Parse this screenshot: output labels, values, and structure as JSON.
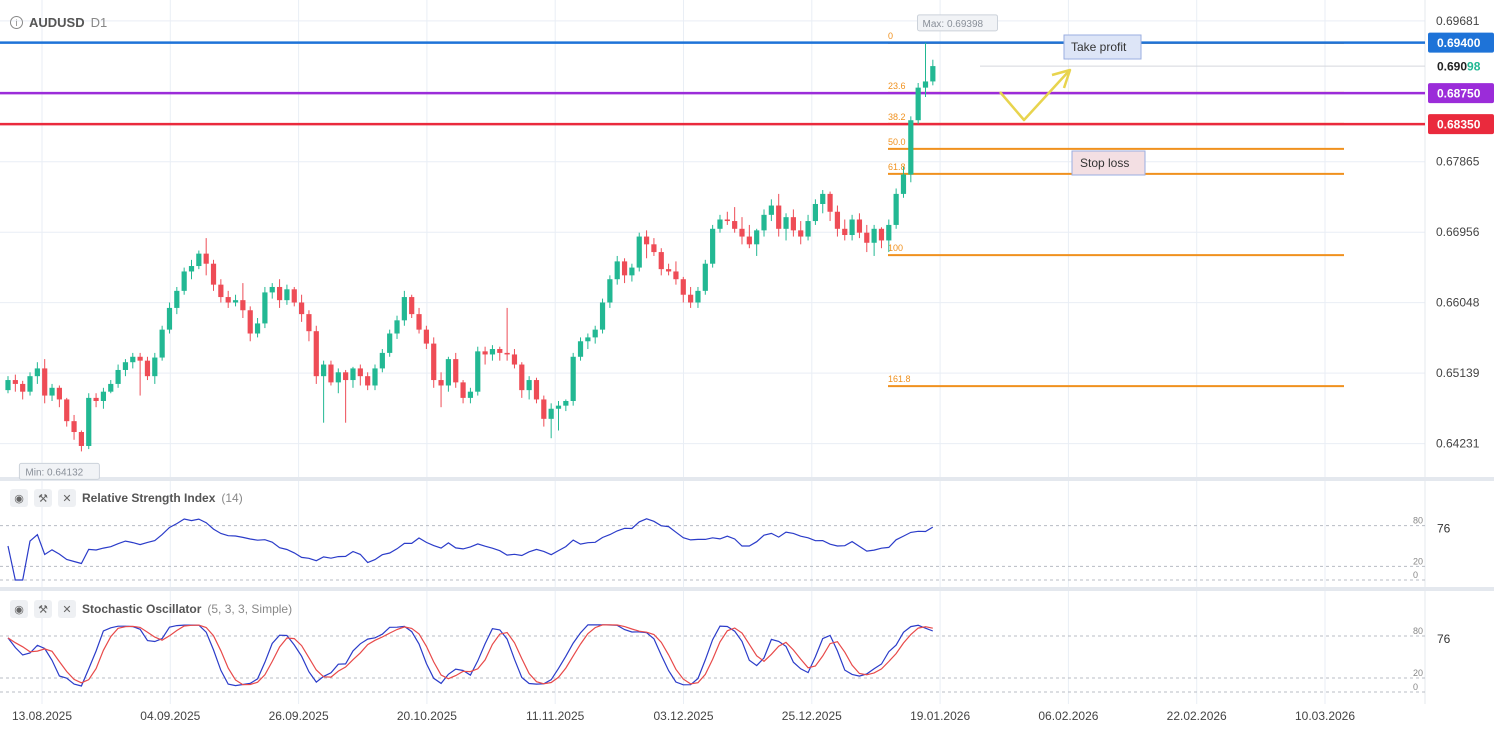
{
  "header": {
    "info_icon": "info-icon",
    "symbol": "AUDUSD",
    "timeframe": "D1"
  },
  "colors": {
    "up": "#22b893",
    "down": "#ee4c56",
    "fib": "#f0911e",
    "blue_line": "#1e73d8",
    "purple_line": "#9b2cd9",
    "red_line": "#ea2a3d",
    "indicator": "#2b3cc9",
    "signal": "#e84a4a",
    "grid": "#e9eef5",
    "arrow": "#e8d44e"
  },
  "price_axis": {
    "ticks": [
      "0.69681",
      "0.67865",
      "0.66956",
      "0.66048",
      "0.65139",
      "0.64231"
    ]
  },
  "levels": [
    {
      "label": "0.69400",
      "value": 0.694,
      "color": "#1e73d8"
    },
    {
      "label": "0.68750",
      "value": 0.6875,
      "color": "#9b2cd9"
    },
    {
      "label": "0.68350",
      "value": 0.6835,
      "color": "#ea2a3d"
    }
  ],
  "last_price": {
    "label_main": "0.690",
    "label_tail": "98",
    "value": 0.69098
  },
  "fibonacci": [
    {
      "label": "0",
      "value": 0.69398
    },
    {
      "label": "23.6",
      "value": 0.68752
    },
    {
      "label": "38.2",
      "value": 0.68353
    },
    {
      "label": "50.0",
      "value": 0.68031
    },
    {
      "label": "61.8",
      "value": 0.67708
    },
    {
      "label": "100",
      "value": 0.6666
    },
    {
      "label": "161.8",
      "value": 0.64971
    }
  ],
  "annotations": {
    "take_profit": "Take profit",
    "stop_loss": "Stop loss",
    "max_label": "Max: 0.69398",
    "min_label": "Min: 0.64132"
  },
  "dates": [
    "13.08.2025",
    "04.09.2025",
    "26.09.2025",
    "20.10.2025",
    "11.11.2025",
    "03.12.2025",
    "25.12.2025",
    "19.01.2026",
    "06.02.2026",
    "22.02.2026",
    "10.03.2026"
  ],
  "indicators": {
    "rsi": {
      "name": "Relative Strength Index",
      "params": "(14)",
      "current": "76",
      "levels": [
        "80",
        "20",
        "0"
      ],
      "icons": [
        "eye-icon",
        "wrench-icon",
        "close-icon"
      ]
    },
    "stoch": {
      "name": "Stochastic Oscillator",
      "params": "(5, 3, 3, Simple)",
      "current": "76",
      "levels": [
        "80",
        "20",
        "0"
      ],
      "icons": [
        "eye-icon",
        "wrench-icon",
        "close-icon"
      ]
    }
  },
  "chart_data": {
    "type": "candlestick",
    "ylim": [
      0.638,
      0.6995
    ],
    "candles": [
      [
        0.6492,
        0.651,
        0.6488,
        0.6505
      ],
      [
        0.6505,
        0.6512,
        0.649,
        0.65
      ],
      [
        0.65,
        0.6504,
        0.648,
        0.649
      ],
      [
        0.649,
        0.6515,
        0.6485,
        0.651
      ],
      [
        0.651,
        0.6528,
        0.65,
        0.652
      ],
      [
        0.652,
        0.6532,
        0.6475,
        0.6485
      ],
      [
        0.6485,
        0.65,
        0.6478,
        0.6495
      ],
      [
        0.6495,
        0.6498,
        0.647,
        0.648
      ],
      [
        0.648,
        0.6482,
        0.6445,
        0.6452
      ],
      [
        0.6452,
        0.646,
        0.6428,
        0.6438
      ],
      [
        0.6438,
        0.644,
        0.6413,
        0.642
      ],
      [
        0.642,
        0.6488,
        0.6416,
        0.6482
      ],
      [
        0.6482,
        0.6488,
        0.647,
        0.6478
      ],
      [
        0.6478,
        0.6495,
        0.6468,
        0.649
      ],
      [
        0.649,
        0.6505,
        0.6488,
        0.65
      ],
      [
        0.65,
        0.6525,
        0.6495,
        0.6518
      ],
      [
        0.6518,
        0.6532,
        0.651,
        0.6528
      ],
      [
        0.6528,
        0.654,
        0.652,
        0.6535
      ],
      [
        0.6535,
        0.654,
        0.6485,
        0.653
      ],
      [
        0.653,
        0.6535,
        0.6505,
        0.651
      ],
      [
        0.651,
        0.654,
        0.65,
        0.6534
      ],
      [
        0.6534,
        0.6575,
        0.653,
        0.657
      ],
      [
        0.657,
        0.6605,
        0.6565,
        0.6598
      ],
      [
        0.6598,
        0.6625,
        0.659,
        0.662
      ],
      [
        0.662,
        0.665,
        0.6615,
        0.6645
      ],
      [
        0.6645,
        0.666,
        0.6635,
        0.6652
      ],
      [
        0.6652,
        0.6672,
        0.6648,
        0.6668
      ],
      [
        0.6668,
        0.6688,
        0.664,
        0.6655
      ],
      [
        0.6655,
        0.666,
        0.662,
        0.6628
      ],
      [
        0.6628,
        0.6635,
        0.6605,
        0.6612
      ],
      [
        0.6612,
        0.662,
        0.6598,
        0.6605
      ],
      [
        0.6605,
        0.6615,
        0.66,
        0.6608
      ],
      [
        0.6608,
        0.663,
        0.6585,
        0.6595
      ],
      [
        0.6595,
        0.66,
        0.6555,
        0.6565
      ],
      [
        0.6565,
        0.6585,
        0.656,
        0.6578
      ],
      [
        0.6578,
        0.6625,
        0.6572,
        0.6618
      ],
      [
        0.6618,
        0.663,
        0.661,
        0.6625
      ],
      [
        0.6625,
        0.6635,
        0.6598,
        0.6608
      ],
      [
        0.6608,
        0.6628,
        0.6602,
        0.6622
      ],
      [
        0.6622,
        0.6625,
        0.66,
        0.6605
      ],
      [
        0.6605,
        0.6615,
        0.658,
        0.659
      ],
      [
        0.659,
        0.6595,
        0.6555,
        0.6568
      ],
      [
        0.6568,
        0.6575,
        0.65,
        0.651
      ],
      [
        0.651,
        0.653,
        0.645,
        0.6525
      ],
      [
        0.6525,
        0.653,
        0.6498,
        0.6502
      ],
      [
        0.6502,
        0.652,
        0.6488,
        0.6515
      ],
      [
        0.6515,
        0.6518,
        0.645,
        0.6505
      ],
      [
        0.6505,
        0.6522,
        0.6495,
        0.652
      ],
      [
        0.652,
        0.6525,
        0.6498,
        0.651
      ],
      [
        0.651,
        0.6515,
        0.6492,
        0.6498
      ],
      [
        0.6498,
        0.6525,
        0.6492,
        0.652
      ],
      [
        0.652,
        0.6545,
        0.6515,
        0.654
      ],
      [
        0.654,
        0.657,
        0.6535,
        0.6565
      ],
      [
        0.6565,
        0.6588,
        0.6558,
        0.6582
      ],
      [
        0.6582,
        0.662,
        0.6575,
        0.6612
      ],
      [
        0.6612,
        0.6615,
        0.6585,
        0.659
      ],
      [
        0.659,
        0.6598,
        0.6565,
        0.657
      ],
      [
        0.657,
        0.6575,
        0.6545,
        0.6552
      ],
      [
        0.6552,
        0.656,
        0.6495,
        0.6505
      ],
      [
        0.6505,
        0.6515,
        0.647,
        0.6498
      ],
      [
        0.6498,
        0.6535,
        0.649,
        0.6532
      ],
      [
        0.6532,
        0.654,
        0.6495,
        0.6502
      ],
      [
        0.6502,
        0.6505,
        0.6475,
        0.6482
      ],
      [
        0.6482,
        0.6495,
        0.6475,
        0.649
      ],
      [
        0.649,
        0.6548,
        0.6485,
        0.6542
      ],
      [
        0.6542,
        0.6548,
        0.6525,
        0.6538
      ],
      [
        0.6538,
        0.655,
        0.653,
        0.6545
      ],
      [
        0.6545,
        0.6548,
        0.653,
        0.654
      ],
      [
        0.654,
        0.6598,
        0.653,
        0.6538
      ],
      [
        0.6538,
        0.6545,
        0.652,
        0.6525
      ],
      [
        0.6525,
        0.6528,
        0.6482,
        0.6492
      ],
      [
        0.6492,
        0.651,
        0.648,
        0.6505
      ],
      [
        0.6505,
        0.6508,
        0.6475,
        0.648
      ],
      [
        0.648,
        0.6485,
        0.6445,
        0.6455
      ],
      [
        0.6455,
        0.6475,
        0.643,
        0.6468
      ],
      [
        0.6468,
        0.6478,
        0.644,
        0.6472
      ],
      [
        0.6472,
        0.648,
        0.6465,
        0.6478
      ],
      [
        0.6478,
        0.654,
        0.6472,
        0.6535
      ],
      [
        0.6535,
        0.656,
        0.653,
        0.6555
      ],
      [
        0.6555,
        0.6565,
        0.6545,
        0.656
      ],
      [
        0.656,
        0.6575,
        0.6552,
        0.657
      ],
      [
        0.657,
        0.661,
        0.6565,
        0.6605
      ],
      [
        0.6605,
        0.664,
        0.6598,
        0.6635
      ],
      [
        0.6635,
        0.6665,
        0.6628,
        0.6658
      ],
      [
        0.6658,
        0.6662,
        0.663,
        0.664
      ],
      [
        0.664,
        0.6655,
        0.6632,
        0.665
      ],
      [
        0.665,
        0.6695,
        0.6645,
        0.669
      ],
      [
        0.669,
        0.6698,
        0.6662,
        0.668
      ],
      [
        0.668,
        0.6688,
        0.6665,
        0.667
      ],
      [
        0.667,
        0.6675,
        0.664,
        0.6648
      ],
      [
        0.6648,
        0.6655,
        0.664,
        0.6645
      ],
      [
        0.6645,
        0.6658,
        0.6628,
        0.6635
      ],
      [
        0.6635,
        0.6638,
        0.6605,
        0.6615
      ],
      [
        0.6615,
        0.6625,
        0.6598,
        0.6605
      ],
      [
        0.6605,
        0.6625,
        0.6598,
        0.662
      ],
      [
        0.662,
        0.666,
        0.6615,
        0.6655
      ],
      [
        0.6655,
        0.6705,
        0.665,
        0.67
      ],
      [
        0.67,
        0.6718,
        0.6695,
        0.6712
      ],
      [
        0.6712,
        0.6722,
        0.6705,
        0.671
      ],
      [
        0.671,
        0.6728,
        0.6695,
        0.67
      ],
      [
        0.67,
        0.6715,
        0.668,
        0.669
      ],
      [
        0.669,
        0.6705,
        0.6675,
        0.668
      ],
      [
        0.668,
        0.67,
        0.6665,
        0.6698
      ],
      [
        0.6698,
        0.6725,
        0.669,
        0.6718
      ],
      [
        0.6718,
        0.6738,
        0.671,
        0.673
      ],
      [
        0.673,
        0.6745,
        0.669,
        0.67
      ],
      [
        0.67,
        0.672,
        0.6685,
        0.6715
      ],
      [
        0.6715,
        0.6725,
        0.669,
        0.6698
      ],
      [
        0.6698,
        0.671,
        0.668,
        0.669
      ],
      [
        0.669,
        0.6718,
        0.6685,
        0.671
      ],
      [
        0.671,
        0.6738,
        0.6705,
        0.6732
      ],
      [
        0.6732,
        0.675,
        0.672,
        0.6745
      ],
      [
        0.6745,
        0.6748,
        0.671,
        0.6722
      ],
      [
        0.6722,
        0.673,
        0.669,
        0.67
      ],
      [
        0.67,
        0.6712,
        0.6685,
        0.6692
      ],
      [
        0.6692,
        0.6718,
        0.6685,
        0.6712
      ],
      [
        0.6712,
        0.672,
        0.6688,
        0.6695
      ],
      [
        0.6695,
        0.6705,
        0.667,
        0.6682
      ],
      [
        0.6682,
        0.6705,
        0.6665,
        0.67
      ],
      [
        0.67,
        0.6702,
        0.6675,
        0.6685
      ],
      [
        0.6685,
        0.6712,
        0.667,
        0.6705
      ],
      [
        0.6705,
        0.6752,
        0.67,
        0.6745
      ],
      [
        0.6745,
        0.678,
        0.674,
        0.677
      ],
      [
        0.677,
        0.6845,
        0.676,
        0.684
      ],
      [
        0.684,
        0.6888,
        0.6835,
        0.6882
      ],
      [
        0.6882,
        0.69398,
        0.687,
        0.689
      ],
      [
        0.689,
        0.6918,
        0.6885,
        0.69098
      ]
    ]
  }
}
